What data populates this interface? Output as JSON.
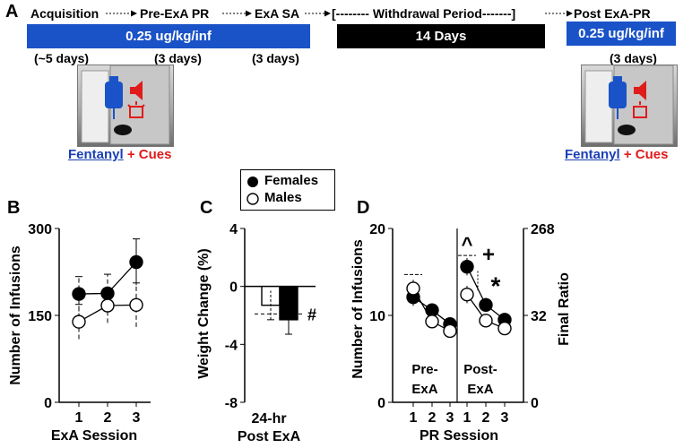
{
  "panels": {
    "a": "A",
    "b": "B",
    "c": "C",
    "d": "D"
  },
  "timeline": {
    "stages": [
      "Acquisition",
      "Pre-ExA PR",
      "ExA SA",
      "[-------- Withdrawal Period-------]",
      "Post ExA-PR"
    ],
    "dose_label": "0.25 ug/kg/inf",
    "post_dose_label": "0.25 ug/kg/inf",
    "withdrawal_label": "14 Days",
    "durations": [
      "(~5 days)",
      "(3 days)",
      "(3 days)",
      "(3 days)"
    ],
    "drug_text": "Fentanyl",
    "cue_text": "+ Cues",
    "colors": {
      "dose_bar": "#1a52c7",
      "withdrawal_bar": "#000000",
      "fentanyl": "#1a3fb5",
      "cues": "#e01b1b"
    },
    "icons": [
      "iv-bag-icon",
      "speaker-icon",
      "cue-light-icon",
      "rat-icon"
    ]
  },
  "legend": {
    "females": "Females",
    "males": "Males"
  },
  "chart_data": [
    {
      "panel": "B",
      "type": "line",
      "ylabel": "Number of Infusions",
      "xlabel": "ExA Session",
      "yticks": [
        "0",
        "150",
        "300"
      ],
      "ylim": [
        0,
        300
      ],
      "x": [
        1,
        2,
        3
      ],
      "xtick_labels": [
        "1",
        "2",
        "3"
      ],
      "series": [
        {
          "name": "Females",
          "values": [
            187,
            188,
            242
          ],
          "sem": [
            30,
            33,
            40
          ]
        },
        {
          "name": "Males",
          "values": [
            139,
            167,
            168
          ],
          "sem": [
            30,
            30,
            38
          ]
        }
      ]
    },
    {
      "panel": "C",
      "type": "bar",
      "ylabel": "Weight Change (%)",
      "xlabel_lines": [
        "24-hr",
        "Post ExA"
      ],
      "yticks": [
        "4",
        "0",
        "-4",
        "-8"
      ],
      "ylim": [
        -8,
        4
      ],
      "categories": [
        "Males",
        "Females"
      ],
      "values": [
        -1.3,
        -2.3
      ],
      "sem": [
        1.0,
        1.0
      ],
      "annotation": "#"
    },
    {
      "panel": "D",
      "type": "line",
      "ylabel": "Number of Infusions",
      "ylabel_right": "Final Ratio",
      "xlabel": "PR Session",
      "yticks": [
        "0",
        "10",
        "20"
      ],
      "yticks_right": [
        "0",
        "32",
        "268"
      ],
      "ylim": [
        0,
        20
      ],
      "x": [
        1,
        2,
        3
      ],
      "xtick_labels": [
        "1",
        "2",
        "3"
      ],
      "phases": [
        "Pre-\nExA",
        "Post-\nExA"
      ],
      "pre": [
        {
          "name": "Females",
          "values": [
            12.1,
            10.6,
            9.0
          ],
          "sem": [
            1.0,
            0.7,
            0.6
          ]
        },
        {
          "name": "Males",
          "values": [
            13.1,
            9.3,
            8.2
          ],
          "sem": [
            1.0,
            0.7,
            0.6
          ]
        }
      ],
      "post": [
        {
          "name": "Females",
          "values": [
            15.6,
            11.2,
            9.5
          ],
          "sem": [
            1.0,
            0.8,
            0.7
          ]
        },
        {
          "name": "Males",
          "values": [
            12.4,
            9.4,
            8.5
          ],
          "sem": [
            1.0,
            0.6,
            0.6
          ]
        }
      ],
      "annotations": [
        "^",
        "+",
        "*"
      ]
    }
  ]
}
